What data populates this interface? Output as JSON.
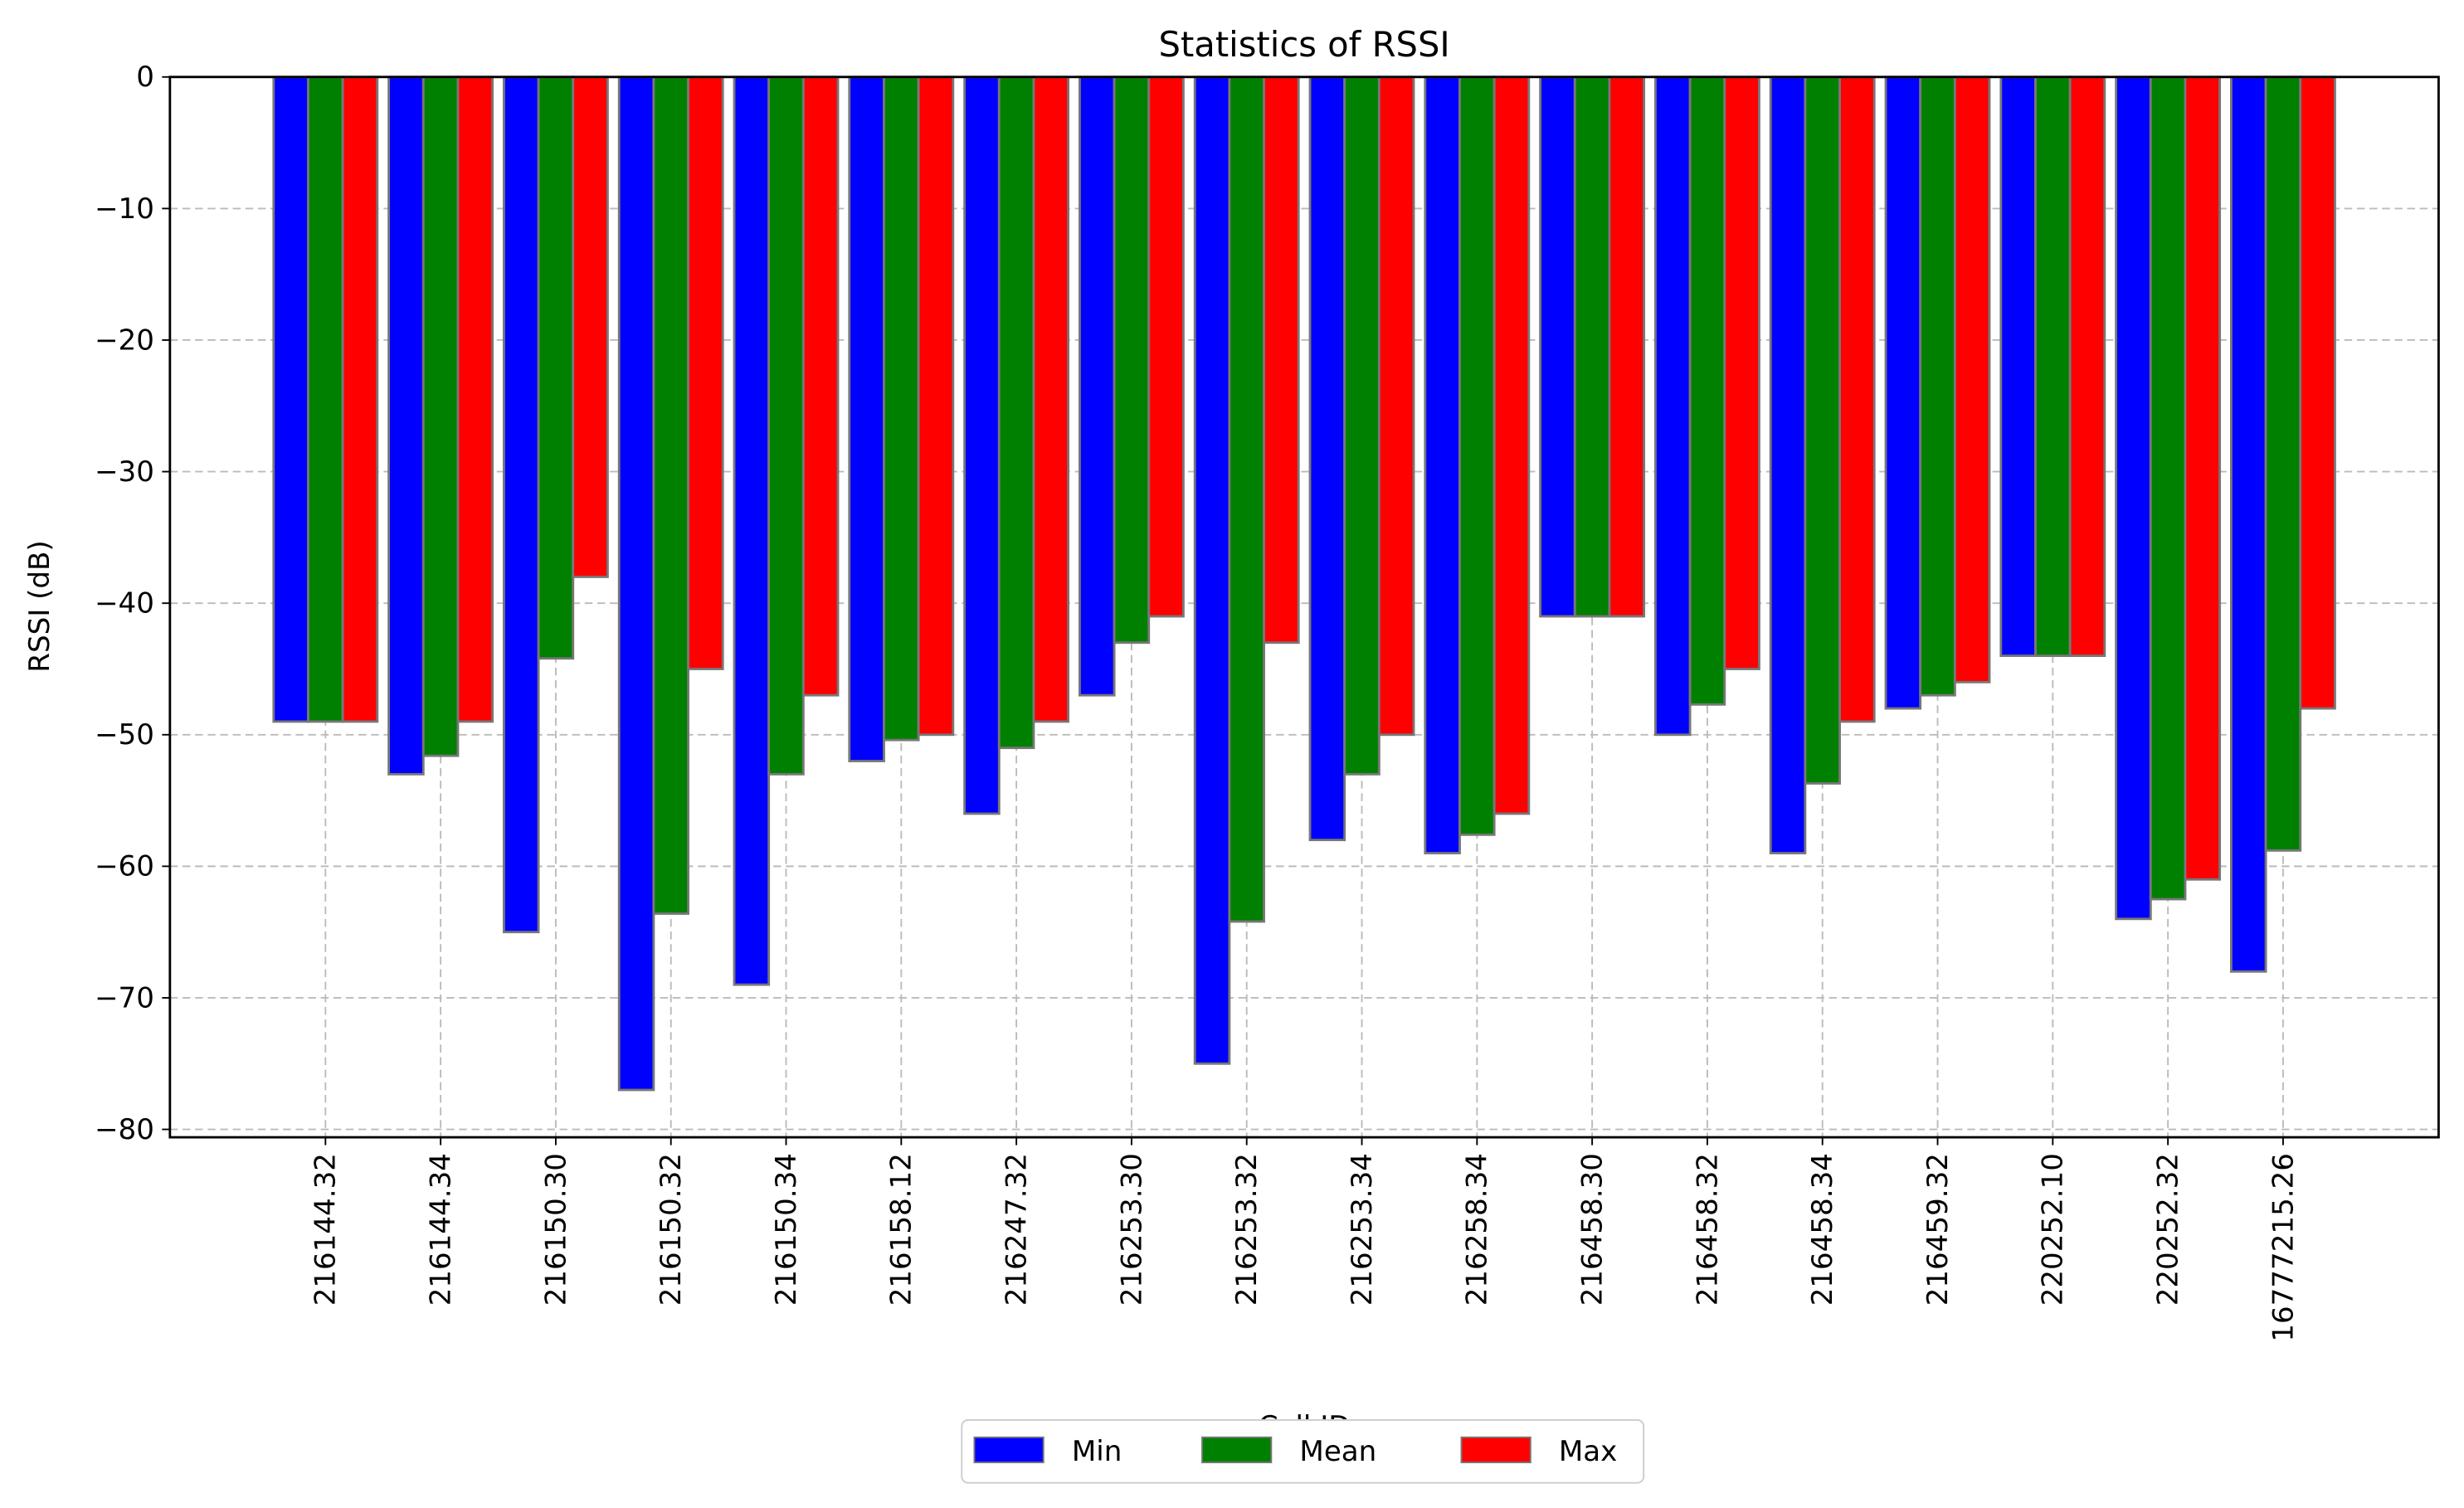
{
  "chart_data": {
    "type": "bar",
    "title": "Statistics of RSSI",
    "x_label": "Cell ID",
    "y_label": "RSSI (dB)",
    "categories": [
      "216144.32",
      "216144.34",
      "216150.30",
      "216150.32",
      "216150.34",
      "216158.12",
      "216247.32",
      "216253.30",
      "216253.32",
      "216253.34",
      "216258.34",
      "216458.30",
      "216458.32",
      "216458.34",
      "216459.32",
      "220252.10",
      "220252.32",
      "16777215.26"
    ],
    "series": [
      {
        "name": "Min",
        "color": "#0000ff",
        "values": [
          -49,
          -53,
          -65,
          -77,
          -69,
          -52,
          -56,
          -47,
          -75,
          -58,
          -59,
          -41,
          -50,
          -59,
          -48,
          -44,
          -64,
          -68
        ]
      },
      {
        "name": "Mean",
        "color": "#008000",
        "values": [
          -49,
          -51.6,
          -44.2,
          -63.6,
          -53,
          -50.4,
          -51,
          -43,
          -64.2,
          -53,
          -57.6,
          -41,
          -47.7,
          -53.7,
          -47,
          -44,
          -62.5,
          -58.8
        ]
      },
      {
        "name": "Max",
        "color": "#ff0000",
        "values": [
          -49,
          -49,
          -38,
          -45,
          -47,
          -50,
          -49,
          -41,
          -43,
          -50,
          -56,
          -41,
          -45,
          -49,
          -46,
          -44,
          -61,
          -48
        ]
      }
    ],
    "ylim": [
      -80.6,
      0
    ],
    "yticks": [
      0,
      {
        "value": -10,
        "label": "−10"
      },
      {
        "value": -20,
        "label": "−20"
      },
      {
        "value": -30,
        "label": "−30"
      },
      {
        "value": -40,
        "label": "−40"
      },
      {
        "value": -50,
        "label": "−50"
      },
      {
        "value": -60,
        "label": "−60"
      },
      {
        "value": -70,
        "label": "−70"
      },
      {
        "value": -80,
        "label": "−80"
      }
    ],
    "grid": true,
    "legend": "bottom"
  }
}
